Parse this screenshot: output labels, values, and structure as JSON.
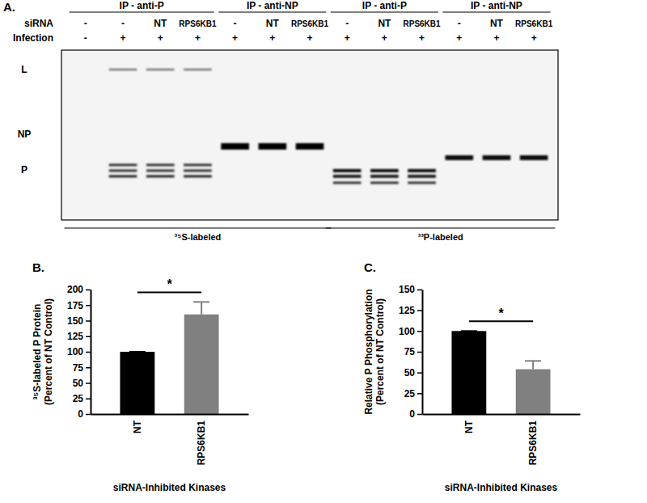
{
  "gel": {
    "panel_label": "A.",
    "row_labels": [
      "siRNA",
      "Infection"
    ],
    "band_labels": [
      "L",
      "NP",
      "P"
    ],
    "groups": [
      {
        "title": "IP - anti-P",
        "siRNA": [
          "-",
          "-",
          "NT",
          "RPS6KB1"
        ],
        "infection": [
          "-",
          "+",
          "+",
          "+"
        ],
        "bands": [
          "L",
          "P"
        ]
      },
      {
        "title": "IP - anti-NP",
        "siRNA": [
          "-",
          "NT",
          "RPS6KB1"
        ],
        "infection": [
          "+",
          "+",
          "+"
        ],
        "bands": [
          "NP"
        ]
      },
      {
        "title": "IP - anti-P",
        "siRNA": [
          "-",
          "NT",
          "RPS6KB1"
        ],
        "infection": [
          "+",
          "+",
          "+"
        ],
        "bands": [
          "P"
        ]
      },
      {
        "title": "IP - anti-NP",
        "siRNA": [
          "-",
          "NT",
          "RPS6KB1"
        ],
        "infection": [
          "+",
          "+",
          "+"
        ],
        "bands": [
          "NP"
        ]
      }
    ],
    "labeling": [
      {
        "text": "³⁵S-labeled",
        "groups": [
          0,
          1
        ]
      },
      {
        "text": "³³P-labeled",
        "groups": [
          2,
          3
        ]
      }
    ]
  },
  "chart_data": [
    {
      "type": "bar",
      "annotations": [
        "B.",
        "*"
      ],
      "categories": [
        "NT",
        "RPS6KB1"
      ],
      "values": [
        100,
        160
      ],
      "errors": [
        0,
        20
      ],
      "colors": [
        "#000000",
        "#808080"
      ],
      "ylim": [
        0,
        200
      ],
      "yticks": [
        0,
        25,
        50,
        75,
        100,
        125,
        150,
        175,
        200
      ],
      "ylabel": [
        "³⁵S-labeled P Protein",
        "(Percent of NT Control)"
      ],
      "xlabel": "siRNA-Inhibited Kinases"
    },
    {
      "type": "bar",
      "annotations": [
        "C.",
        "*"
      ],
      "categories": [
        "NT",
        "RPS6KB1"
      ],
      "values": [
        100,
        54
      ],
      "errors": [
        0,
        10
      ],
      "colors": [
        "#000000",
        "#808080"
      ],
      "ylim": [
        0,
        150
      ],
      "yticks": [
        0,
        25,
        50,
        75,
        100,
        125,
        150
      ],
      "ylabel": [
        "Relative P Phosphorylation",
        "(Percent of NT Control)"
      ],
      "xlabel": "siRNA-Inhibited Kinases"
    }
  ]
}
